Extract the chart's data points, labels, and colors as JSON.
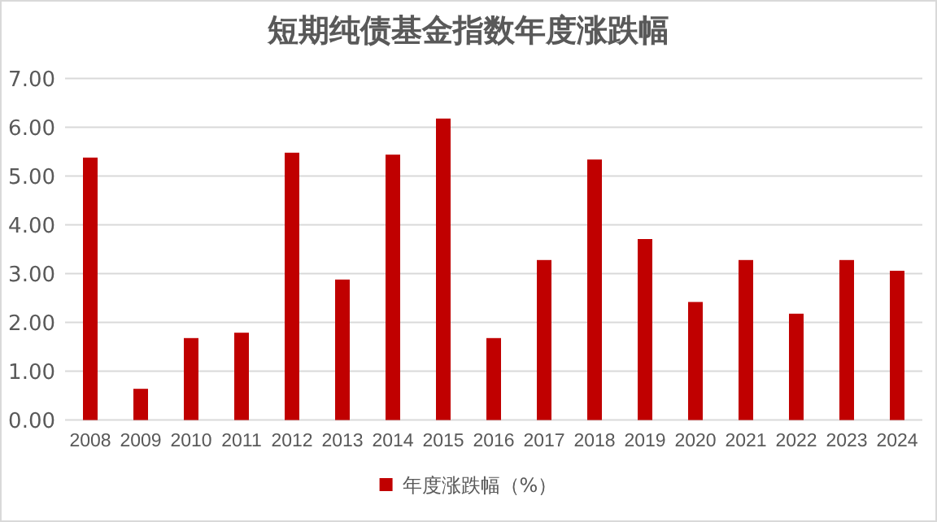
{
  "chart_data": {
    "type": "bar",
    "title": "短期纯债基金指数年度涨跌幅",
    "categories": [
      "2008",
      "2009",
      "2010",
      "2011",
      "2012",
      "2013",
      "2014",
      "2015",
      "2016",
      "2017",
      "2018",
      "2019",
      "2020",
      "2021",
      "2022",
      "2023",
      "2024"
    ],
    "series": [
      {
        "name": "年度涨跌幅（%）",
        "color": "#c00000",
        "values": [
          5.38,
          0.64,
          1.68,
          1.79,
          5.48,
          2.88,
          5.44,
          6.18,
          1.68,
          3.28,
          5.34,
          3.71,
          2.42,
          3.28,
          2.18,
          3.28,
          3.06
        ]
      }
    ],
    "ylim": [
      0,
      7
    ],
    "yticks": [
      {
        "value": 0,
        "label": "0.00"
      },
      {
        "value": 1,
        "label": "1.00"
      },
      {
        "value": 2,
        "label": "2.00"
      },
      {
        "value": 3,
        "label": "3.00"
      },
      {
        "value": 4,
        "label": "4.00"
      },
      {
        "value": 5,
        "label": "5.00"
      },
      {
        "value": 6,
        "label": "6.00"
      },
      {
        "value": 7,
        "label": "7.00"
      }
    ],
    "grid": "y",
    "legend": "bottom"
  }
}
